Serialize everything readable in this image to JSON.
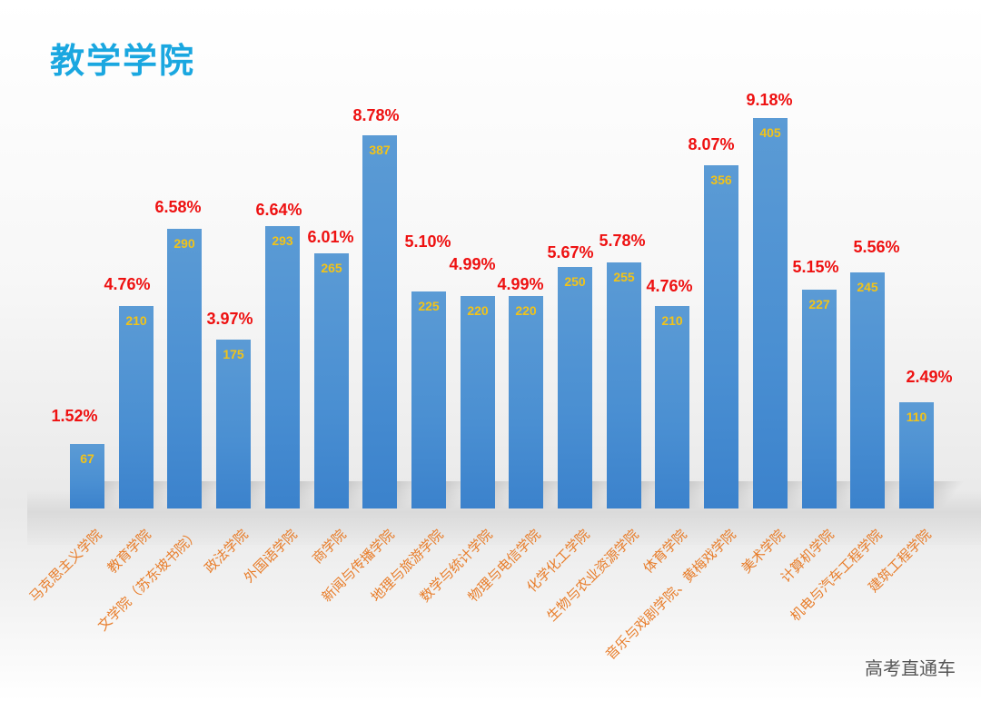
{
  "title": "教学学院",
  "watermark": "高考直通车",
  "colors": {
    "title": "#1aa7e0",
    "bar": "#4a8fd2",
    "value_label": "#f2c318",
    "pct_label": "#ee1111",
    "x_label": "#e87d2a"
  },
  "chart_data": {
    "type": "bar",
    "title": "教学学院",
    "xlabel": "",
    "ylabel": "",
    "grid": false,
    "legend": "none",
    "ylim": [
      0,
      420
    ],
    "categories": [
      "马克思主义学院",
      "教育学院",
      "文学院（苏东坡书院）",
      "政法学院",
      "外国语学院",
      "商学院",
      "新闻与传播学院",
      "地理与旅游学院",
      "数学与统计学院",
      "物理与电信学院",
      "化学化工学院",
      "生物与农业资源学院",
      "体育学院",
      "音乐与戏剧学院、黄梅戏学院",
      "美术学院",
      "计算机学院",
      "机电与汽车工程学院",
      "建筑工程学院"
    ],
    "values": [
      67,
      210,
      290,
      175,
      293,
      265,
      387,
      225,
      220,
      220,
      250,
      255,
      210,
      356,
      405,
      227,
      245,
      110
    ],
    "percent_labels": [
      "1.52%",
      "4.76%",
      "6.58%",
      "3.97%",
      "6.64%",
      "6.01%",
      "8.78%",
      "5.10%",
      "4.99%",
      "4.99%",
      "5.67%",
      "5.78%",
      "4.76%",
      "8.07%",
      "9.18%",
      "5.15%",
      "5.56%",
      "2.49%"
    ]
  },
  "bars": [
    {
      "label": "马克思主义学院",
      "value": "67",
      "pct": "1.52%"
    },
    {
      "label": "教育学院",
      "value": "210",
      "pct": "4.76%"
    },
    {
      "label": "文学院（苏东坡书院）",
      "value": "290",
      "pct": "6.58%"
    },
    {
      "label": "政法学院",
      "value": "175",
      "pct": "3.97%"
    },
    {
      "label": "外国语学院",
      "value": "293",
      "pct": "6.64%"
    },
    {
      "label": "商学院",
      "value": "265",
      "pct": "6.01%"
    },
    {
      "label": "新闻与传播学院",
      "value": "387",
      "pct": "8.78%"
    },
    {
      "label": "地理与旅游学院",
      "value": "225",
      "pct": "5.10%"
    },
    {
      "label": "数学与统计学院",
      "value": "220",
      "pct": "4.99%"
    },
    {
      "label": "物理与电信学院",
      "value": "220",
      "pct": "4.99%"
    },
    {
      "label": "化学化工学院",
      "value": "250",
      "pct": "5.67%"
    },
    {
      "label": "生物与农业资源学院",
      "value": "255",
      "pct": "5.78%"
    },
    {
      "label": "体育学院",
      "value": "210",
      "pct": "4.76%"
    },
    {
      "label": "音乐与戏剧学院、黄梅戏学院",
      "value": "356",
      "pct": "8.07%"
    },
    {
      "label": "美术学院",
      "value": "405",
      "pct": "9.18%"
    },
    {
      "label": "计算机学院",
      "value": "227",
      "pct": "5.15%"
    },
    {
      "label": "机电与汽车工程学院",
      "value": "245",
      "pct": "5.56%"
    },
    {
      "label": "建筑工程学院",
      "value": "110",
      "pct": "2.49%"
    }
  ]
}
